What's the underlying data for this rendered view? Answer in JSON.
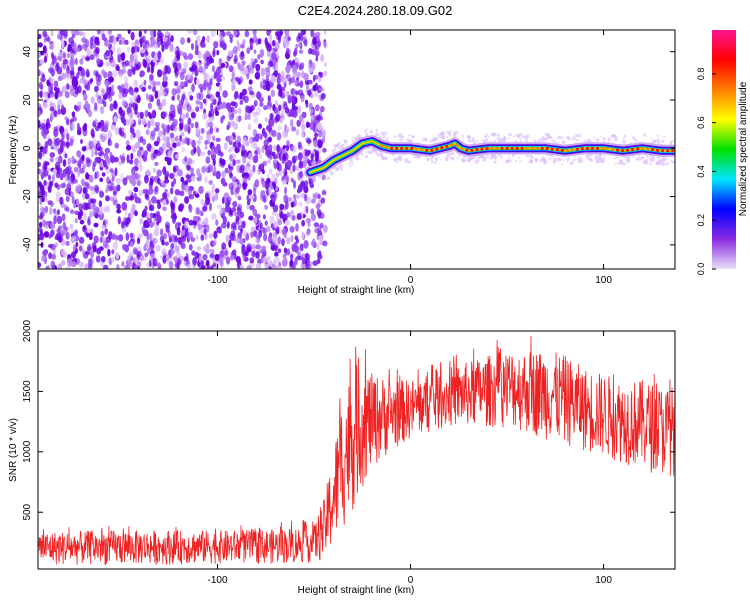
{
  "title": "C2E4.2024.280.18.09.G02",
  "colors": {
    "snr_line": "#ee2222",
    "spectrogram_noise": [
      "#6a00e0",
      "#7a22ee",
      "#9040f0",
      "#b37af2",
      "#d8b8fa"
    ],
    "colormap_stops": [
      "#e8e0f8",
      "#8a2be2",
      "#0000ff",
      "#00e5ff",
      "#00e000",
      "#ffff00",
      "#ff7f00",
      "#ff0000",
      "#ff1493"
    ]
  },
  "chart_data": [
    {
      "type": "heatmap",
      "name": "spectrogram",
      "xlabel": "Height of straight line (km)",
      "ylabel": "Frequency (Hz)",
      "xlim": [
        -193,
        137
      ],
      "ylim": [
        -50,
        49
      ],
      "x_ticks": [
        -100,
        0,
        100
      ],
      "y_ticks": [
        -40,
        -20,
        0,
        20,
        40
      ],
      "noise_region_x": [
        -193,
        -44
      ],
      "signal_trace": {
        "x": [
          -52,
          -45,
          -40,
          -35,
          -30,
          -25,
          -20,
          -15,
          -10,
          -5,
          0,
          10,
          20,
          23,
          26,
          30,
          40,
          50,
          60,
          70,
          80,
          90,
          100,
          110,
          120,
          130,
          137
        ],
        "y": [
          -10,
          -8,
          -5,
          -3,
          -1,
          2,
          3,
          1,
          0,
          0,
          0,
          -1,
          1,
          2,
          0,
          -1,
          0,
          0,
          0,
          0,
          -1,
          0,
          0,
          -1,
          0,
          -1,
          -1
        ]
      },
      "colorbar": {
        "label": "Normalized spectral amplitude",
        "range": [
          0,
          0.98
        ],
        "ticks": [
          0.0,
          0.2,
          0.4,
          0.6,
          0.8
        ]
      }
    },
    {
      "type": "line",
      "name": "snr",
      "xlabel": "Height of straight line (km)",
      "ylabel": "SNR (10 * v/v)",
      "xlim": [
        -193,
        137
      ],
      "ylim": [
        30,
        2000
      ],
      "x_ticks": [
        -100,
        0,
        100
      ],
      "y_ticks": [
        500,
        1000,
        1500,
        2000
      ],
      "envelope": {
        "x": [
          -193,
          -150,
          -100,
          -70,
          -50,
          -45,
          -40,
          -35,
          -30,
          -25,
          -20,
          -10,
          0,
          10,
          20,
          30,
          40,
          50,
          60,
          70,
          80,
          90,
          100,
          110,
          120,
          130,
          137
        ],
        "low": [
          60,
          60,
          70,
          70,
          80,
          90,
          200,
          350,
          500,
          700,
          850,
          1000,
          1100,
          1150,
          1200,
          1200,
          1200,
          1200,
          1150,
          1100,
          1050,
          1000,
          950,
          900,
          850,
          800,
          800
        ],
        "high": [
          340,
          350,
          350,
          360,
          400,
          600,
          1000,
          1500,
          1700,
          1750,
          1650,
          1600,
          1600,
          1650,
          1700,
          1750,
          1800,
          1850,
          1850,
          1850,
          1800,
          1700,
          1650,
          1600,
          1600,
          1550,
          1550
        ]
      }
    }
  ]
}
